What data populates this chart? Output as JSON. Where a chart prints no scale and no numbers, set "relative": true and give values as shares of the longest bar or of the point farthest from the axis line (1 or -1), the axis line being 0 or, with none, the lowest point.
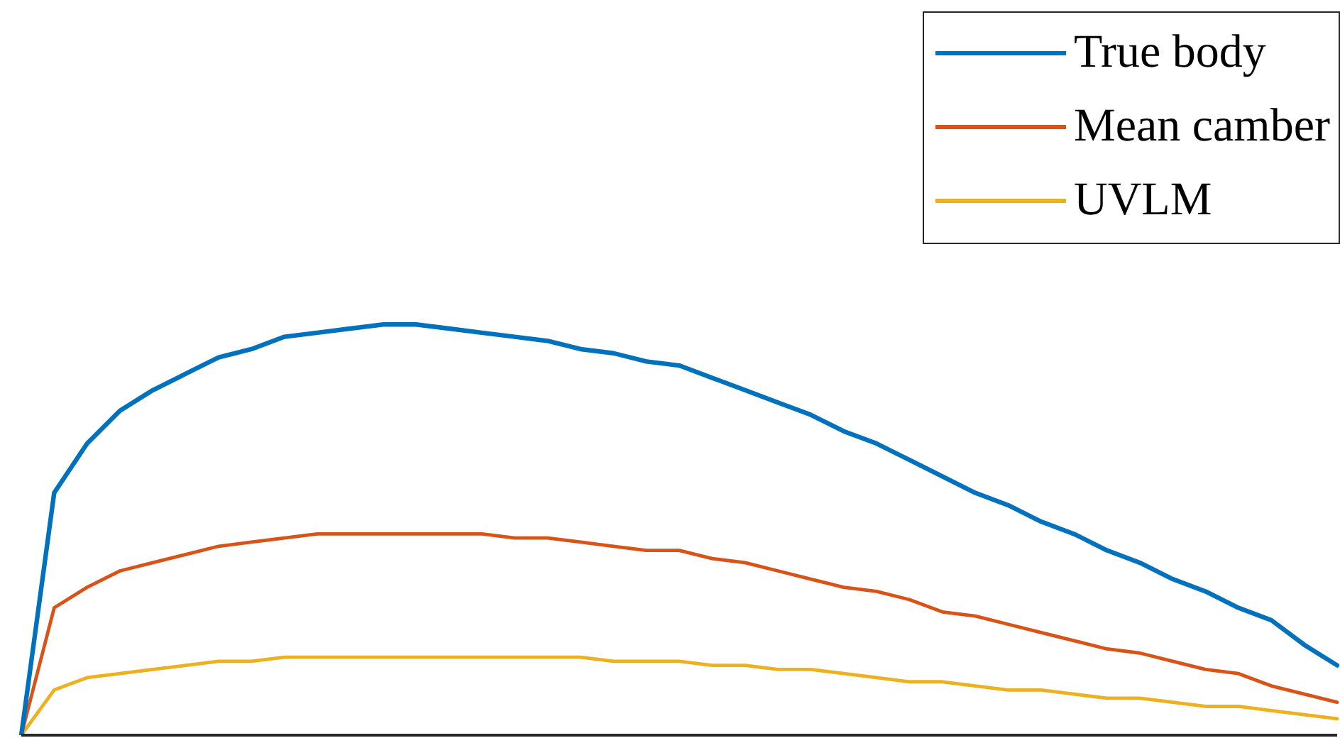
{
  "chart_data": {
    "type": "line",
    "relative": true,
    "legend": "top right",
    "marker": "none",
    "line_style": "solid",
    "categories": [
      null,
      null,
      null,
      null,
      null,
      null,
      null,
      null,
      null,
      null,
      null,
      null,
      null,
      null,
      null,
      null,
      null,
      null,
      null,
      null,
      null,
      null,
      null,
      null,
      null,
      null,
      null,
      null,
      null,
      null,
      null,
      null,
      null,
      null,
      null,
      null,
      null,
      null,
      null,
      null,
      null
    ],
    "series": [
      {
        "name": "True body",
        "color": "#0072bd",
        "values": [
          0,
          0.59,
          0.71,
          0.79,
          0.84,
          0.88,
          0.92,
          0.94,
          0.97,
          0.98,
          0.99,
          1,
          1,
          0.99,
          0.98,
          0.97,
          0.96,
          0.94,
          0.93,
          0.91,
          0.9,
          0.87,
          0.84,
          0.81,
          0.78,
          0.74,
          0.71,
          0.67,
          0.63,
          0.59,
          0.56,
          0.52,
          0.49,
          0.45,
          0.42,
          0.38,
          0.35,
          0.31,
          0.28,
          0.22,
          0.17
        ]
      },
      {
        "name": "Mean camber",
        "color": "#d95319",
        "values": [
          0,
          0.31,
          0.36,
          0.4,
          0.42,
          0.44,
          0.46,
          0.47,
          0.48,
          0.49,
          0.49,
          0.49,
          0.49,
          0.49,
          0.49,
          0.48,
          0.48,
          0.47,
          0.46,
          0.45,
          0.45,
          0.43,
          0.42,
          0.4,
          0.38,
          0.36,
          0.35,
          0.33,
          0.3,
          0.29,
          0.27,
          0.25,
          0.23,
          0.21,
          0.2,
          0.18,
          0.16,
          0.15,
          0.12,
          0.1,
          0.08
        ]
      },
      {
        "name": "UVLM",
        "color": "#edb120",
        "values": [
          0,
          0.11,
          0.14,
          0.15,
          0.16,
          0.17,
          0.18,
          0.18,
          0.19,
          0.19,
          0.19,
          0.19,
          0.19,
          0.19,
          0.19,
          0.19,
          0.19,
          0.19,
          0.18,
          0.18,
          0.18,
          0.17,
          0.17,
          0.16,
          0.16,
          0.15,
          0.14,
          0.13,
          0.13,
          0.12,
          0.11,
          0.11,
          0.1,
          0.09,
          0.09,
          0.08,
          0.07,
          0.07,
          0.06,
          0.05,
          0.04
        ]
      }
    ]
  }
}
